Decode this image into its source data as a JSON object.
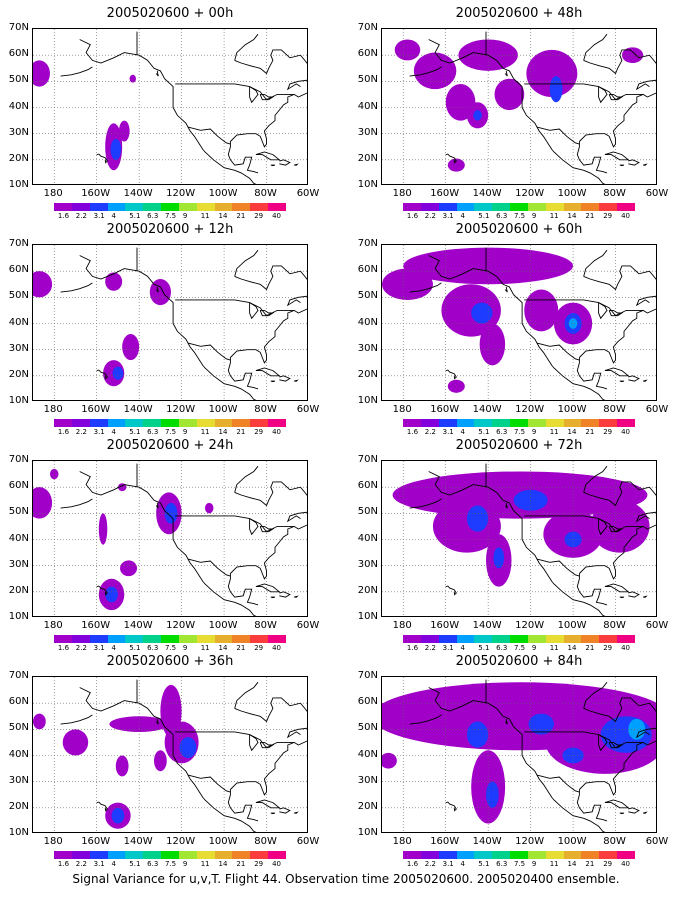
{
  "caption": "Signal Variance for u,v,T. Flight 44. Observation time 2005020600. 2005020400 ensemble.",
  "colors": [
    "#a000c8",
    "#8200dc",
    "#1e3cff",
    "#00a0ff",
    "#00c8c8",
    "#00d28c",
    "#00dc00",
    "#a0e632",
    "#e6dc32",
    "#e6af2d",
    "#f08228",
    "#fa3c3c",
    "#f00082"
  ],
  "chart_data": {
    "type": "heatmap",
    "lat_ticks": [
      "10N",
      "20N",
      "30N",
      "40N",
      "50N",
      "60N",
      "70N"
    ],
    "lon_ticks": [
      "180",
      "160W",
      "140W",
      "120W",
      "100W",
      "80W",
      "60W"
    ],
    "colorbar_labels": [
      "1.6",
      "2.2",
      "3.1",
      "4",
      "5.1",
      "6.3",
      "7.5",
      "9",
      "11",
      "14",
      "21",
      "29",
      "40"
    ],
    "lon_range": [
      -190,
      -60
    ],
    "lat_range": [
      10,
      70
    ],
    "panels": [
      {
        "title": "2005020600 + 00h",
        "lead": 0,
        "blobs": [
          {
            "lon": -187,
            "lat": 53,
            "rx": 5,
            "ry": 5,
            "level": 1
          },
          {
            "lon": -143,
            "lat": 51,
            "rx": 1.5,
            "ry": 1.5,
            "level": 1
          },
          {
            "lon": -152,
            "lat": 25,
            "rx": 4,
            "ry": 9,
            "level": 1
          },
          {
            "lon": -151,
            "lat": 24,
            "rx": 2.5,
            "ry": 4,
            "level": 3
          },
          {
            "lon": -147,
            "lat": 31,
            "rx": 2.5,
            "ry": 4,
            "level": 1
          }
        ]
      },
      {
        "title": "2005020600 + 12h",
        "lead": 12,
        "blobs": [
          {
            "lon": -187,
            "lat": 55,
            "rx": 6,
            "ry": 5,
            "level": 1
          },
          {
            "lon": -152,
            "lat": 56,
            "rx": 4,
            "ry": 3.5,
            "level": 1
          },
          {
            "lon": -130,
            "lat": 52,
            "rx": 5,
            "ry": 5,
            "level": 1
          },
          {
            "lon": -152,
            "lat": 21,
            "rx": 5,
            "ry": 5,
            "level": 1
          },
          {
            "lon": -150,
            "lat": 21,
            "rx": 2.5,
            "ry": 2.5,
            "level": 3
          },
          {
            "lon": -144,
            "lat": 31,
            "rx": 4,
            "ry": 5,
            "level": 1
          }
        ]
      },
      {
        "title": "2005020600 + 24h",
        "lead": 24,
        "blobs": [
          {
            "lon": -187,
            "lat": 54,
            "rx": 6,
            "ry": 6,
            "level": 1
          },
          {
            "lon": -180,
            "lat": 65,
            "rx": 2,
            "ry": 2,
            "level": 1
          },
          {
            "lon": -148,
            "lat": 60,
            "rx": 2,
            "ry": 1.5,
            "level": 1
          },
          {
            "lon": -126,
            "lat": 50,
            "rx": 6,
            "ry": 8,
            "level": 1
          },
          {
            "lon": -125,
            "lat": 50,
            "rx": 3,
            "ry": 4,
            "level": 3
          },
          {
            "lon": -107,
            "lat": 52,
            "rx": 2,
            "ry": 2,
            "level": 1
          },
          {
            "lon": -157,
            "lat": 44,
            "rx": 2,
            "ry": 6,
            "level": 1
          },
          {
            "lon": -145,
            "lat": 29,
            "rx": 4,
            "ry": 3,
            "level": 1
          },
          {
            "lon": -153,
            "lat": 19,
            "rx": 6,
            "ry": 6,
            "level": 1
          },
          {
            "lon": -153,
            "lat": 19,
            "rx": 3,
            "ry": 3,
            "level": 3
          }
        ]
      },
      {
        "title": "2005020600 + 36h",
        "lead": 36,
        "blobs": [
          {
            "lon": -187,
            "lat": 53,
            "rx": 3,
            "ry": 3,
            "level": 1
          },
          {
            "lon": -170,
            "lat": 45,
            "rx": 6,
            "ry": 5,
            "level": 1
          },
          {
            "lon": -150,
            "lat": 17,
            "rx": 6,
            "ry": 5,
            "level": 1
          },
          {
            "lon": -150,
            "lat": 17,
            "rx": 3,
            "ry": 3,
            "level": 3
          },
          {
            "lon": -148,
            "lat": 36,
            "rx": 3,
            "ry": 4,
            "level": 1
          },
          {
            "lon": -140,
            "lat": 52,
            "rx": 14,
            "ry": 3,
            "level": 1
          },
          {
            "lon": -125,
            "lat": 57,
            "rx": 5,
            "ry": 10,
            "level": 1
          },
          {
            "lon": -120,
            "lat": 45,
            "rx": 8,
            "ry": 8,
            "level": 1
          },
          {
            "lon": -117,
            "lat": 43,
            "rx": 4,
            "ry": 4,
            "level": 3
          },
          {
            "lon": -130,
            "lat": 38,
            "rx": 3,
            "ry": 4,
            "level": 1
          }
        ]
      },
      {
        "title": "2005020600 + 48h",
        "lead": 48,
        "blobs": [
          {
            "lon": -178,
            "lat": 62,
            "rx": 6,
            "ry": 4,
            "level": 1
          },
          {
            "lon": -165,
            "lat": 54,
            "rx": 10,
            "ry": 7,
            "level": 1
          },
          {
            "lon": -140,
            "lat": 60,
            "rx": 14,
            "ry": 6,
            "level": 1
          },
          {
            "lon": -110,
            "lat": 53,
            "rx": 12,
            "ry": 9,
            "level": 1
          },
          {
            "lon": -108,
            "lat": 47,
            "rx": 3,
            "ry": 5,
            "level": 3
          },
          {
            "lon": -130,
            "lat": 45,
            "rx": 7,
            "ry": 6,
            "level": 1
          },
          {
            "lon": -153,
            "lat": 42,
            "rx": 7,
            "ry": 7,
            "level": 1
          },
          {
            "lon": -145,
            "lat": 37,
            "rx": 5,
            "ry": 5,
            "level": 1
          },
          {
            "lon": -145,
            "lat": 37,
            "rx": 2,
            "ry": 2,
            "level": 3
          },
          {
            "lon": -155,
            "lat": 18,
            "rx": 4,
            "ry": 2.5,
            "level": 1
          },
          {
            "lon": -72,
            "lat": 60,
            "rx": 5,
            "ry": 3,
            "level": 1
          }
        ]
      },
      {
        "title": "2005020600 + 60h",
        "lead": 60,
        "blobs": [
          {
            "lon": -140,
            "lat": 62,
            "rx": 40,
            "ry": 7,
            "level": 1
          },
          {
            "lon": -178,
            "lat": 55,
            "rx": 12,
            "ry": 6,
            "level": 1
          },
          {
            "lon": -148,
            "lat": 45,
            "rx": 14,
            "ry": 10,
            "level": 1
          },
          {
            "lon": -143,
            "lat": 44,
            "rx": 5,
            "ry": 4,
            "level": 3
          },
          {
            "lon": -138,
            "lat": 32,
            "rx": 6,
            "ry": 8,
            "level": 1
          },
          {
            "lon": -115,
            "lat": 45,
            "rx": 8,
            "ry": 8,
            "level": 1
          },
          {
            "lon": -100,
            "lat": 40,
            "rx": 9,
            "ry": 8,
            "level": 1
          },
          {
            "lon": -100,
            "lat": 40,
            "rx": 4,
            "ry": 4,
            "level": 3
          },
          {
            "lon": -100,
            "lat": 40,
            "rx": 2,
            "ry": 2,
            "level": 4
          },
          {
            "lon": -155,
            "lat": 16,
            "rx": 4,
            "ry": 2.5,
            "level": 1
          }
        ]
      },
      {
        "title": "2005020600 + 72h",
        "lead": 72,
        "blobs": [
          {
            "lon": -125,
            "lat": 57,
            "rx": 60,
            "ry": 9,
            "level": 1
          },
          {
            "lon": -150,
            "lat": 45,
            "rx": 16,
            "ry": 10,
            "level": 1
          },
          {
            "lon": -145,
            "lat": 48,
            "rx": 5,
            "ry": 5,
            "level": 3
          },
          {
            "lon": -120,
            "lat": 55,
            "rx": 8,
            "ry": 4,
            "level": 3
          },
          {
            "lon": -135,
            "lat": 32,
            "rx": 6,
            "ry": 10,
            "level": 1
          },
          {
            "lon": -135,
            "lat": 33,
            "rx": 2.5,
            "ry": 4,
            "level": 3
          },
          {
            "lon": -100,
            "lat": 42,
            "rx": 14,
            "ry": 9,
            "level": 1
          },
          {
            "lon": -100,
            "lat": 40,
            "rx": 4,
            "ry": 3,
            "level": 3
          },
          {
            "lon": -78,
            "lat": 45,
            "rx": 14,
            "ry": 10,
            "level": 1
          }
        ]
      },
      {
        "title": "2005020600 + 84h",
        "lead": 84,
        "blobs": [
          {
            "lon": -125,
            "lat": 55,
            "rx": 70,
            "ry": 13,
            "level": 1
          },
          {
            "lon": -85,
            "lat": 45,
            "rx": 28,
            "ry": 12,
            "level": 1
          },
          {
            "lon": -75,
            "lat": 48,
            "rx": 12,
            "ry": 7,
            "level": 3
          },
          {
            "lon": -70,
            "lat": 50,
            "rx": 4,
            "ry": 4,
            "level": 4
          },
          {
            "lon": -100,
            "lat": 40,
            "rx": 5,
            "ry": 3,
            "level": 3
          },
          {
            "lon": -140,
            "lat": 28,
            "rx": 8,
            "ry": 14,
            "level": 1
          },
          {
            "lon": -138,
            "lat": 25,
            "rx": 3,
            "ry": 5,
            "level": 3
          },
          {
            "lon": -145,
            "lat": 48,
            "rx": 5,
            "ry": 5,
            "level": 3
          },
          {
            "lon": -115,
            "lat": 52,
            "rx": 6,
            "ry": 4,
            "level": 3
          },
          {
            "lon": -187,
            "lat": 38,
            "rx": 4,
            "ry": 3,
            "level": 1
          }
        ]
      }
    ]
  }
}
